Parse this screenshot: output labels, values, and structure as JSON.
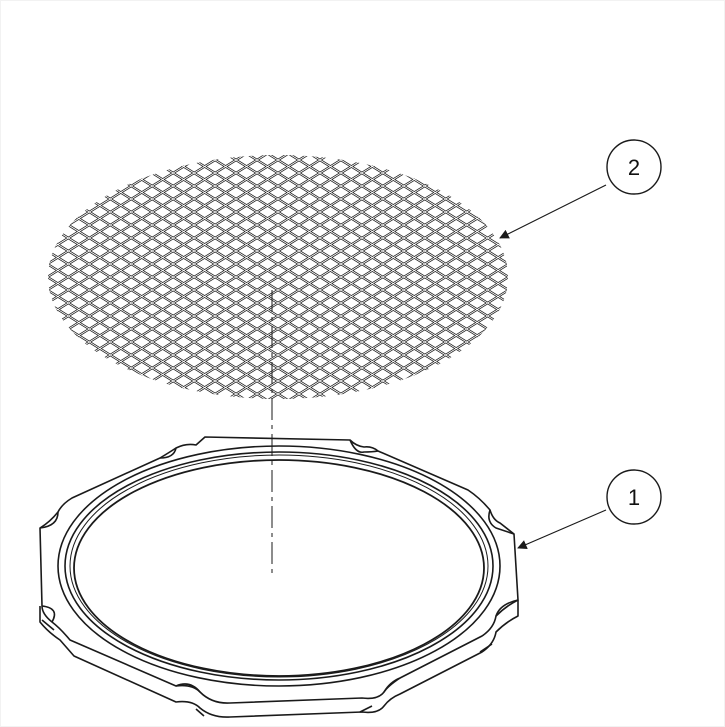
{
  "balloons": [
    {
      "label": "2",
      "part": "mesh-screen"
    },
    {
      "label": "1",
      "part": "octagonal-ring-frame"
    }
  ],
  "colors": {
    "line": "#1a1a1a",
    "background": "#ffffff"
  }
}
